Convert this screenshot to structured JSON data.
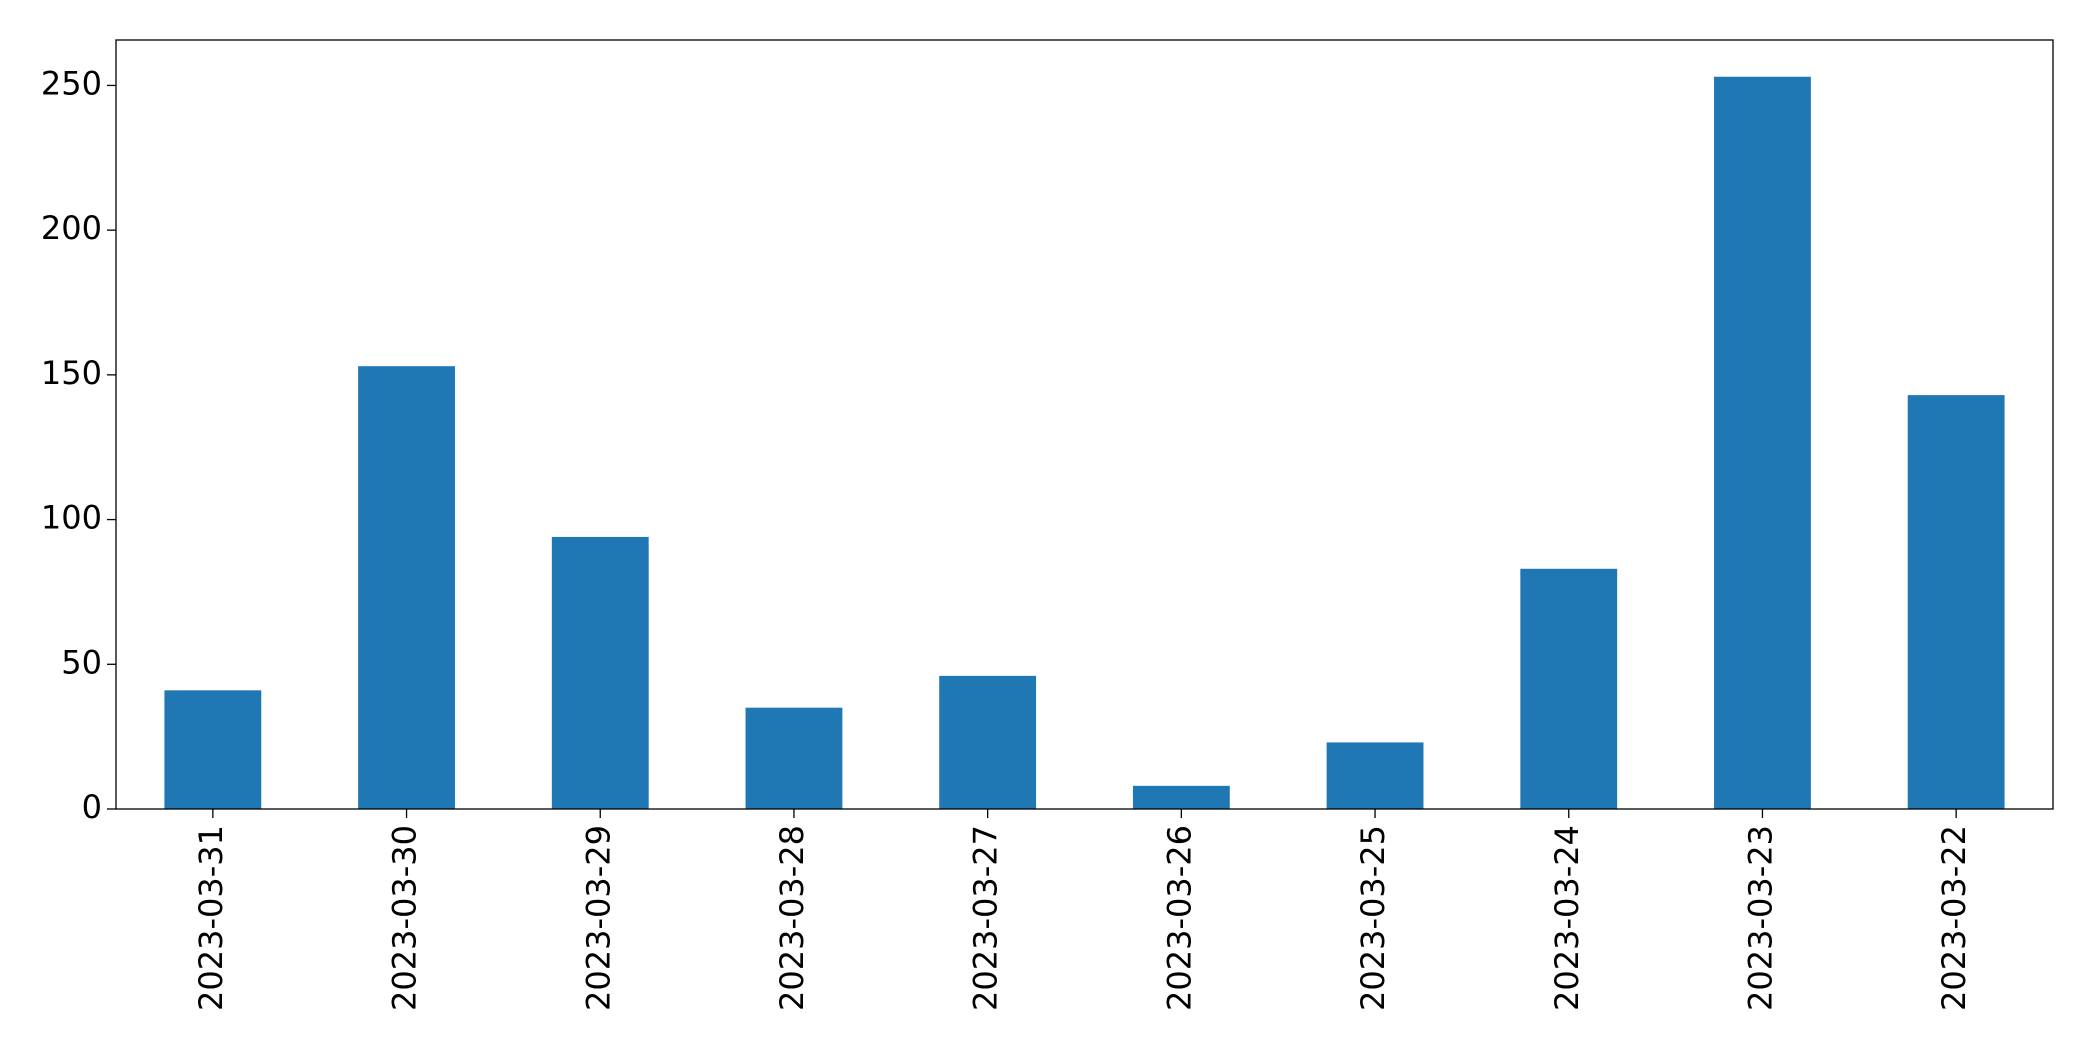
{
  "chart_data": {
    "type": "bar",
    "categories": [
      "2023-03-31",
      "2023-03-30",
      "2023-03-29",
      "2023-03-28",
      "2023-03-27",
      "2023-03-26",
      "2023-03-25",
      "2023-03-24",
      "2023-03-23",
      "2023-03-22"
    ],
    "values": [
      41,
      153,
      94,
      35,
      46,
      8,
      23,
      83,
      253,
      143
    ],
    "color": "#1f77b4",
    "ylim": [
      0,
      265.7
    ],
    "yticks": [
      0,
      50,
      100,
      150,
      200,
      250
    ],
    "grid": false
  }
}
